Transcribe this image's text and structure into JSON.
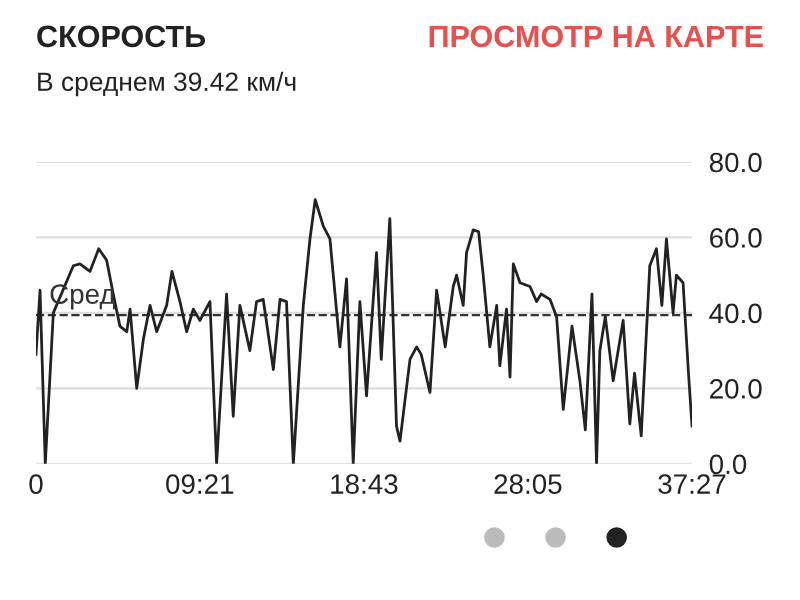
{
  "chart_data": {
    "type": "line",
    "title": "СКОРОСТЬ",
    "subtitle": "В среднем 39.42 км/ч",
    "annotations": [
      "ПРОСМОТР НА КАРТЕ"
    ],
    "x": [
      0,
      0.23,
      0.53,
      0.99,
      2.13,
      2.51,
      3.08,
      3.58,
      4.03,
      4.41,
      4.79,
      5.18,
      5.37,
      5.75,
      6.13,
      6.51,
      6.89,
      7.46,
      7.76,
      8.22,
      8.6,
      8.98,
      9.36,
      9.93,
      10.31,
      10.88,
      11.26,
      11.64,
      12.21,
      12.59,
      12.97,
      13.55,
      13.93,
      14.3,
      14.69,
      15.26,
      15.64,
      15.94,
      16.4,
      16.78,
      17.35,
      17.73,
      18.11,
      18.49,
      18.87,
      19.44,
      19.71,
      20.2,
      20.58,
      20.78,
      21.35,
      21.73,
      21.99,
      22.49,
      22.87,
      23.36,
      23.82,
      24.01,
      24.39,
      24.58,
      24.96,
      25.27,
      25.53,
      25.91,
      26.3,
      26.48,
      26.86,
      27.06,
      27.25,
      27.63,
      28.2,
      28.58,
      28.84,
      29.34,
      29.72,
      30.1,
      30.6,
      31.05,
      31.36,
      31.74,
      32.0,
      32.19,
      32.5,
      32.95,
      33.52,
      33.9,
      34.17,
      34.55,
      35.04,
      35.42,
      35.73,
      35.99,
      36.37,
      36.56,
      36.94,
      37.25,
      37.45
    ],
    "values": [
      29,
      46,
      0,
      40,
      52.5,
      53,
      51,
      57,
      54,
      45,
      36.5,
      35,
      41,
      20,
      33,
      42,
      35,
      42,
      51,
      43,
      35,
      41,
      38,
      43,
      0,
      45,
      12.6,
      42,
      30,
      43,
      43.6,
      25,
      43.6,
      43,
      0,
      42,
      59.6,
      70,
      63,
      59.6,
      31,
      49,
      0,
      43,
      18,
      56,
      27.7,
      65,
      10,
      6,
      27.7,
      31,
      29,
      18.9,
      46,
      31,
      47,
      50,
      42,
      56,
      62,
      61.5,
      50,
      31,
      42,
      26,
      41,
      23,
      53,
      48,
      47,
      43,
      45,
      43.6,
      39,
      14.4,
      36.5,
      22,
      9,
      45,
      0,
      30,
      39,
      22,
      38,
      10.6,
      24,
      7.4,
      52.5,
      57,
      42,
      59.6,
      40,
      50,
      48,
      24,
      10
    ],
    "color": "#222222",
    "xlim": [
      0,
      37.45
    ],
    "xticks": [
      0,
      {
        "value": 9.35,
        "label": "09:21"
      },
      {
        "value": 18.72,
        "label": "18:43"
      },
      {
        "value": 28.08,
        "label": "28:05"
      },
      {
        "value": 37.45,
        "label": "37:27"
      }
    ],
    "ylim": [
      0,
      80
    ],
    "yticks": [
      {
        "value": 0,
        "label": "0.0"
      },
      {
        "value": 20,
        "label": "20.0"
      },
      {
        "value": 40,
        "label": "40.0"
      },
      {
        "value": 60,
        "label": "60.0"
      },
      {
        "value": 80,
        "label": "80.0"
      }
    ],
    "grid": "y",
    "ref_lines": [
      {
        "axis": "y",
        "value": 39.42,
        "label": "Сред",
        "line_style": "dashed",
        "color": "#333333"
      }
    ]
  }
}
